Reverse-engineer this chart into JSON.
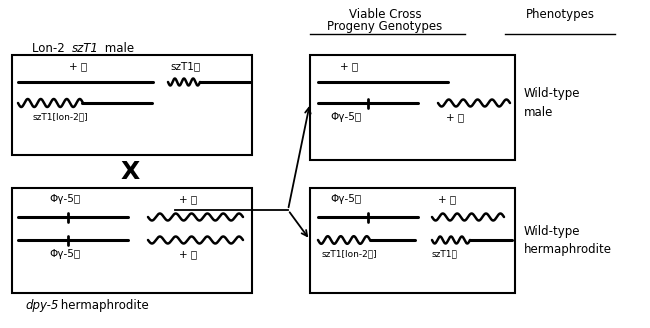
{
  "bg_color": "#ffffff",
  "fig_width": 6.5,
  "fig_height": 3.28,
  "dpi": 100,
  "header_viable": "Viable Cross",
  "header_progeny": "Progeny Genotypes",
  "header_phenotypes": "Phenotypes",
  "label_box1_normal": "Lon-2 ",
  "label_box1_italic": "szT1",
  "label_box1_rest": " male",
  "label_box2_italic": "dpy-5",
  "label_box2_rest": " hermaphrodite",
  "label_wt_male": "Wild-type\nmale",
  "label_wt_herm": "Wild-type\nhermaphrodite",
  "cross_x": "X",
  "plus_I": "+ Ⓘ",
  "szT1_X": "szT1Ⓒ",
  "szT1_lon2_I": "szT1[lon-2Ⓘ]",
  "phi_gamma_5_I": "Φγ-5Ⓘ",
  "plus_X": "+ Ⓒ",
  "phi_gamma_5_I2": "Φγ-5Ⓘ"
}
